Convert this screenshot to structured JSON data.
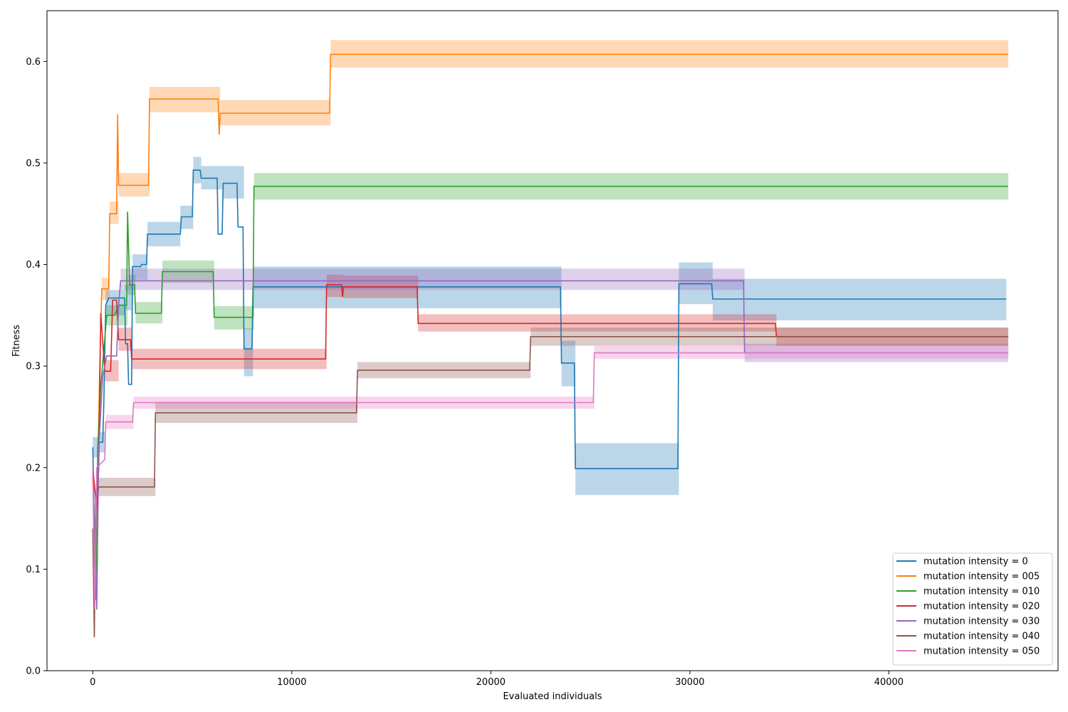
{
  "chart_data": {
    "type": "line",
    "title": "",
    "xlabel": "Evaluated individuals",
    "ylabel": "Fitness",
    "xlim": [
      -2300,
      48500
    ],
    "ylim": [
      0.0,
      0.65
    ],
    "xticks": [
      0,
      10000,
      20000,
      30000,
      40000
    ],
    "yticks": [
      0.0,
      0.1,
      0.2,
      0.3,
      0.4,
      0.5,
      0.6
    ],
    "grid": false,
    "legend_position": "lower right",
    "series": [
      {
        "name": "mutation intensity = 0",
        "color": "#1f77b4",
        "points": [
          [
            0,
            0.22
          ],
          [
            150,
            0.08
          ],
          [
            200,
            0.16
          ],
          [
            280,
            0.22
          ],
          [
            300,
            0.225
          ],
          [
            500,
            0.225
          ],
          [
            550,
            0.26
          ],
          [
            650,
            0.36
          ],
          [
            800,
            0.367
          ],
          [
            1600,
            0.367
          ],
          [
            1650,
            0.322
          ],
          [
            1750,
            0.322
          ],
          [
            1800,
            0.282
          ],
          [
            1950,
            0.282
          ],
          [
            2000,
            0.398
          ],
          [
            2400,
            0.398
          ],
          [
            2450,
            0.4
          ],
          [
            2700,
            0.4
          ],
          [
            2750,
            0.43
          ],
          [
            4400,
            0.43
          ],
          [
            4450,
            0.447
          ],
          [
            5000,
            0.447
          ],
          [
            5050,
            0.493
          ],
          [
            5400,
            0.493
          ],
          [
            5450,
            0.485
          ],
          [
            6250,
            0.485
          ],
          [
            6300,
            0.43
          ],
          [
            6500,
            0.43
          ],
          [
            6550,
            0.48
          ],
          [
            7250,
            0.48
          ],
          [
            7300,
            0.437
          ],
          [
            7550,
            0.437
          ],
          [
            7600,
            0.317
          ],
          [
            8000,
            0.317
          ],
          [
            8050,
            0.378
          ],
          [
            23500,
            0.378
          ],
          [
            23550,
            0.303
          ],
          [
            24200,
            0.303
          ],
          [
            24250,
            0.199
          ],
          [
            29400,
            0.199
          ],
          [
            29450,
            0.381
          ],
          [
            31100,
            0.381
          ],
          [
            31150,
            0.366
          ],
          [
            45900,
            0.366
          ]
        ],
        "band": [
          [
            0,
            0.21,
            0.23
          ],
          [
            300,
            0.215,
            0.235
          ],
          [
            650,
            0.35,
            0.375
          ],
          [
            1600,
            0.355,
            0.38
          ],
          [
            2000,
            0.385,
            0.41
          ],
          [
            2750,
            0.418,
            0.442
          ],
          [
            4400,
            0.435,
            0.458
          ],
          [
            5050,
            0.48,
            0.506
          ],
          [
            5450,
            0.474,
            0.497
          ],
          [
            6550,
            0.465,
            0.497
          ],
          [
            7600,
            0.29,
            0.337
          ],
          [
            8050,
            0.357,
            0.398
          ],
          [
            23550,
            0.28,
            0.325
          ],
          [
            24250,
            0.173,
            0.224
          ],
          [
            29450,
            0.361,
            0.402
          ],
          [
            31150,
            0.345,
            0.386
          ],
          [
            45900,
            0.345,
            0.386
          ]
        ]
      },
      {
        "name": "mutation intensity = 005",
        "color": "#ff7f0e",
        "points": [
          [
            0,
            0.19
          ],
          [
            150,
            0.1
          ],
          [
            250,
            0.2
          ],
          [
            350,
            0.3
          ],
          [
            450,
            0.376
          ],
          [
            800,
            0.376
          ],
          [
            850,
            0.45
          ],
          [
            1200,
            0.45
          ],
          [
            1250,
            0.548
          ],
          [
            1300,
            0.478
          ],
          [
            2800,
            0.478
          ],
          [
            2850,
            0.563
          ],
          [
            6300,
            0.563
          ],
          [
            6350,
            0.528
          ],
          [
            6400,
            0.549
          ],
          [
            11900,
            0.549
          ],
          [
            11950,
            0.607
          ],
          [
            46000,
            0.607
          ]
        ],
        "band": [
          [
            450,
            0.365,
            0.387
          ],
          [
            850,
            0.44,
            0.462
          ],
          [
            1300,
            0.467,
            0.49
          ],
          [
            2850,
            0.55,
            0.575
          ],
          [
            6400,
            0.537,
            0.562
          ],
          [
            11950,
            0.594,
            0.621
          ],
          [
            46000,
            0.594,
            0.621
          ]
        ]
      },
      {
        "name": "mutation intensity = 010",
        "color": "#2ca02c",
        "points": [
          [
            0,
            0.2
          ],
          [
            150,
            0.07
          ],
          [
            250,
            0.22
          ],
          [
            400,
            0.28
          ],
          [
            700,
            0.35
          ],
          [
            1100,
            0.35
          ],
          [
            1300,
            0.36
          ],
          [
            1700,
            0.36
          ],
          [
            1750,
            0.452
          ],
          [
            1850,
            0.38
          ],
          [
            2100,
            0.38
          ],
          [
            2150,
            0.352
          ],
          [
            3450,
            0.352
          ],
          [
            3500,
            0.393
          ],
          [
            6050,
            0.393
          ],
          [
            6100,
            0.348
          ],
          [
            8050,
            0.348
          ],
          [
            8100,
            0.477
          ],
          [
            46000,
            0.477
          ]
        ],
        "band": [
          [
            700,
            0.34,
            0.36
          ],
          [
            1750,
            0.37,
            0.39
          ],
          [
            2150,
            0.342,
            0.363
          ],
          [
            3500,
            0.382,
            0.404
          ],
          [
            6100,
            0.336,
            0.359
          ],
          [
            8100,
            0.464,
            0.49
          ],
          [
            46000,
            0.464,
            0.49
          ]
        ]
      },
      {
        "name": "mutation intensity = 020",
        "color": "#d62728",
        "points": [
          [
            0,
            0.2
          ],
          [
            200,
            0.16
          ],
          [
            300,
            0.2
          ],
          [
            400,
            0.352
          ],
          [
            600,
            0.295
          ],
          [
            900,
            0.295
          ],
          [
            1000,
            0.365
          ],
          [
            1200,
            0.365
          ],
          [
            1300,
            0.326
          ],
          [
            1900,
            0.326
          ],
          [
            1950,
            0.307
          ],
          [
            11700,
            0.307
          ],
          [
            11750,
            0.38
          ],
          [
            12500,
            0.38
          ],
          [
            12550,
            0.368
          ],
          [
            12600,
            0.378
          ],
          [
            16300,
            0.378
          ],
          [
            16350,
            0.342
          ],
          [
            34300,
            0.342
          ],
          [
            34350,
            0.329
          ],
          [
            46000,
            0.329
          ]
        ],
        "band": [
          [
            600,
            0.285,
            0.306
          ],
          [
            1300,
            0.315,
            0.338
          ],
          [
            1950,
            0.297,
            0.317
          ],
          [
            11750,
            0.368,
            0.39
          ],
          [
            12600,
            0.367,
            0.389
          ],
          [
            16350,
            0.334,
            0.351
          ],
          [
            34350,
            0.32,
            0.338
          ],
          [
            46000,
            0.32,
            0.338
          ]
        ]
      },
      {
        "name": "mutation intensity = 030",
        "color": "#9467bd",
        "points": [
          [
            0,
            0.2
          ],
          [
            200,
            0.06
          ],
          [
            300,
            0.22
          ],
          [
            500,
            0.29
          ],
          [
            700,
            0.31
          ],
          [
            1200,
            0.31
          ],
          [
            1300,
            0.36
          ],
          [
            1400,
            0.384
          ],
          [
            32700,
            0.384
          ],
          [
            32750,
            0.313
          ],
          [
            46000,
            0.313
          ]
        ],
        "band": [
          [
            1400,
            0.375,
            0.396
          ],
          [
            32750,
            0.304,
            0.322
          ],
          [
            46000,
            0.304,
            0.322
          ]
        ]
      },
      {
        "name": "mutation intensity = 040",
        "color": "#8c564b",
        "points": [
          [
            0,
            0.14
          ],
          [
            80,
            0.033
          ],
          [
            150,
            0.17
          ],
          [
            300,
            0.181
          ],
          [
            3100,
            0.181
          ],
          [
            3150,
            0.254
          ],
          [
            13250,
            0.254
          ],
          [
            13300,
            0.296
          ],
          [
            21950,
            0.296
          ],
          [
            22000,
            0.329
          ],
          [
            46000,
            0.329
          ]
        ],
        "band": [
          [
            300,
            0.172,
            0.19
          ],
          [
            3150,
            0.244,
            0.265
          ],
          [
            13300,
            0.288,
            0.304
          ],
          [
            22000,
            0.32,
            0.338
          ],
          [
            46000,
            0.32,
            0.338
          ]
        ]
      },
      {
        "name": "mutation intensity = 050",
        "color": "#e377c2",
        "points": [
          [
            0,
            0.2
          ],
          [
            100,
            0.06
          ],
          [
            200,
            0.2
          ],
          [
            600,
            0.208
          ],
          [
            650,
            0.245
          ],
          [
            2000,
            0.245
          ],
          [
            2050,
            0.264
          ],
          [
            25150,
            0.264
          ],
          [
            25200,
            0.313
          ],
          [
            46000,
            0.313
          ]
        ],
        "band": [
          [
            650,
            0.238,
            0.252
          ],
          [
            2050,
            0.258,
            0.27
          ],
          [
            25200,
            0.307,
            0.32
          ],
          [
            46000,
            0.307,
            0.32
          ]
        ]
      }
    ]
  }
}
